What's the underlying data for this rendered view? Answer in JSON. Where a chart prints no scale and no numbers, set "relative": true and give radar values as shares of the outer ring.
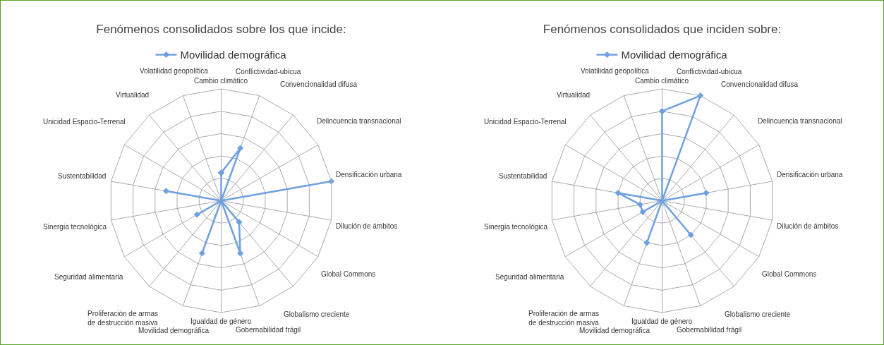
{
  "chart_data": [
    {
      "type": "radar",
      "title": "Fenómenos consolidados sobre los que incide:",
      "relative": true,
      "legend": "top",
      "marker": "diamond",
      "grid": true,
      "categories": [
        "Cambio climático",
        "Conflictividad-ubicua",
        "Convencionalidad difusa",
        "Delincuencia transnacional",
        "Densificación urbana",
        "Dilución de ámbitos",
        "Global Commons",
        "Globalismo creciente",
        "Gobernabilidad frágil",
        "Igualdad de género",
        "Movilidad demográfica",
        "Proliferación de armas de destrucción masiva",
        "Seguridad alimentaria",
        "Sinergia tecnológica",
        "Sustentabilidad",
        "Unicidad Espacio-Terrenal",
        "Virtualidad",
        "Volatilidad geopolítica"
      ],
      "series": [
        {
          "name": "Movilidad demográfica",
          "color": "#6fa0e0",
          "values": [
            0.25,
            0.5,
            0,
            0,
            1,
            0,
            0,
            0.25,
            0.5,
            0,
            0.5,
            0,
            0.25,
            0,
            0.5,
            0,
            0,
            0
          ]
        }
      ]
    },
    {
      "type": "radar",
      "title": "Fenómenos consolidados que inciden sobre:",
      "relative": true,
      "legend": "top",
      "marker": "diamond",
      "grid": true,
      "categories": [
        "Cambio climático",
        "Conflictividad-ubicua",
        "Convencionalidad difusa",
        "Delincuencia transnacional",
        "Densificación urbana",
        "Dilución de ámbitos",
        "Global Commons",
        "Globalismo creciente",
        "Gobernabilidad frágil",
        "Igualdad de género",
        "Movilidad demográfica",
        "Proliferación de armas de destrucción masiva",
        "Seguridad alimentaria",
        "Sinergia tecnológica",
        "Sustentabilidad",
        "Unicidad Espacio-Terrenal",
        "Virtualidad",
        "Volatilidad geopolítica"
      ],
      "series": [
        {
          "name": "Movilidad demográfica",
          "color": "#6fa0e0",
          "values": [
            0.8,
            1,
            0,
            0,
            0.4,
            0,
            0,
            0.4,
            0,
            0,
            0.4,
            0,
            0.2,
            0.2,
            0.4,
            0,
            0,
            0
          ]
        }
      ]
    }
  ]
}
